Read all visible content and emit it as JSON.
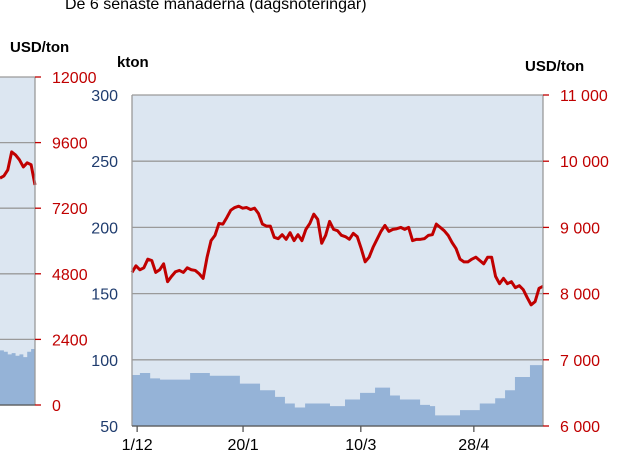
{
  "chart_data": [
    {
      "type": "line",
      "y2_label": "USD/ton",
      "xlim": [
        0,
        9
      ],
      "y2lim": [
        0,
        12000
      ],
      "y2ticks": [
        0,
        2400,
        4800,
        7200,
        9600,
        12000
      ],
      "grid": true,
      "series": [
        {
          "type": "area",
          "color": "#95b3d7",
          "axis": "y2",
          "x": [
            0,
            1,
            2,
            3,
            4,
            5,
            6,
            7,
            8,
            9
          ],
          "values": [
            2000,
            1950,
            1850,
            1900,
            1800,
            1850,
            1750,
            1950,
            2050,
            2150
          ]
        },
        {
          "type": "line",
          "color": "#c00000",
          "axis": "y2",
          "x": [
            0,
            1,
            2,
            3,
            4,
            5,
            6,
            7,
            8,
            9
          ],
          "values": [
            8300,
            8380,
            8600,
            9260,
            9150,
            8970,
            8710,
            8860,
            8790,
            8050
          ]
        }
      ]
    },
    {
      "type": "line",
      "title": "De 6 senaste månaderna (dagsnoteringar)",
      "y_label": "kton",
      "y2_label": "USD/ton",
      "xlim": [
        0,
        104
      ],
      "ylim": [
        50,
        300
      ],
      "yticks": [
        50,
        100,
        150,
        200,
        250,
        300
      ],
      "y2lim": [
        6000,
        11000
      ],
      "y2ticks": [
        {
          "value": 6000,
          "label": "6 000"
        },
        {
          "value": 7000,
          "label": "7 000"
        },
        {
          "value": 8000,
          "label": "8 000"
        },
        {
          "value": 9000,
          "label": "9 000"
        },
        {
          "value": 10000,
          "label": "10 000"
        },
        {
          "value": 11000,
          "label": "11 000"
        }
      ],
      "xticks": [
        {
          "value": 1.3,
          "label": "1/12"
        },
        {
          "value": 28.1,
          "label": "20/1"
        },
        {
          "value": 57.9,
          "label": "10/3"
        },
        {
          "value": 86.5,
          "label": "28/4"
        }
      ],
      "grid": true,
      "series": [
        {
          "type": "area",
          "color": "#95b3d7",
          "x": [
            0,
            2,
            4.6,
            7.1,
            14.7,
            19.7,
            27.3,
            32.4,
            36.2,
            38.7,
            41.2,
            43.8,
            50.1,
            53.9,
            57.7,
            61.5,
            65.3,
            67.8,
            72.9,
            75.4,
            76.7,
            80.5,
            83,
            88,
            91.9,
            94.4,
            96.9,
            100.7,
            104
          ],
          "values": [
            88.5,
            90,
            86,
            85,
            90,
            88,
            82,
            77,
            72,
            67,
            64,
            67,
            65,
            70,
            75,
            79,
            73,
            70,
            66,
            65,
            58,
            58,
            62,
            67,
            71,
            77,
            87,
            96,
            98
          ]
        },
        {
          "type": "line",
          "color": "#c00000",
          "axis": "y2",
          "x": [
            0,
            1,
            2,
            3,
            4,
            5,
            6,
            7,
            8,
            9,
            10,
            11,
            12,
            13,
            14,
            15,
            16,
            17,
            18,
            19,
            20,
            21,
            22,
            23,
            24,
            25,
            26,
            27,
            28,
            29,
            30,
            31,
            32,
            33,
            34,
            35,
            36,
            37,
            38,
            39,
            40,
            41,
            42,
            43,
            44,
            45,
            46,
            47,
            48,
            49,
            50,
            51,
            52,
            53,
            54,
            55,
            56,
            57,
            58,
            59,
            60,
            61,
            62,
            63,
            64,
            65,
            66,
            67,
            68,
            69,
            70,
            71,
            72,
            73,
            74,
            75,
            76,
            77,
            78,
            79,
            80,
            81,
            82,
            83,
            84,
            85,
            86,
            87,
            88,
            89,
            90,
            91,
            92,
            93,
            94,
            95,
            96,
            97,
            98,
            99,
            100,
            101,
            102,
            103,
            104
          ],
          "values": [
            8320,
            8420,
            8360,
            8390,
            8520,
            8500,
            8320,
            8360,
            8450,
            8180,
            8260,
            8330,
            8350,
            8320,
            8390,
            8360,
            8350,
            8300,
            8230,
            8550,
            8800,
            8880,
            9060,
            9050,
            9150,
            9260,
            9300,
            9320,
            9290,
            9300,
            9270,
            9290,
            9210,
            9050,
            9020,
            9020,
            8850,
            8830,
            8890,
            8820,
            8920,
            8800,
            8890,
            8800,
            8970,
            9060,
            9200,
            9120,
            8760,
            8880,
            9090,
            8970,
            8950,
            8880,
            8860,
            8820,
            8910,
            8860,
            8680,
            8480,
            8550,
            8700,
            8820,
            8940,
            9030,
            8940,
            8970,
            8980,
            9000,
            8970,
            9000,
            8800,
            8820,
            8820,
            8830,
            8880,
            8890,
            9050,
            9000,
            8950,
            8880,
            8770,
            8680,
            8520,
            8480,
            8480,
            8520,
            8550,
            8500,
            8450,
            8550,
            8550,
            8260,
            8150,
            8230,
            8150,
            8180,
            8090,
            8120,
            8060,
            7940,
            7830,
            7880,
            8080,
            8110
          ]
        }
      ]
    }
  ]
}
